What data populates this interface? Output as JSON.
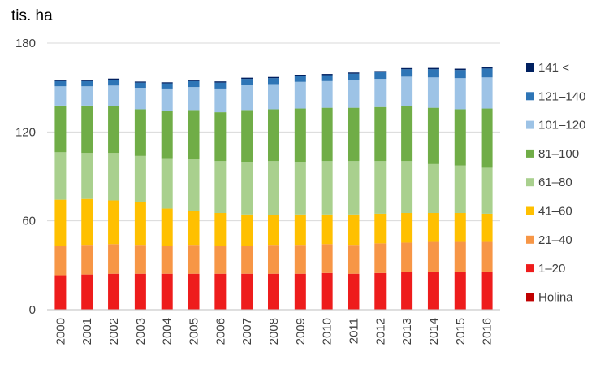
{
  "chart_data": {
    "type": "bar",
    "stacked": true,
    "unit_label": "tis. ha",
    "ylim": [
      0,
      180
    ],
    "yticks": [
      "0",
      "60",
      "120",
      "180"
    ],
    "grid": true,
    "legend_position": "right",
    "categories": [
      "2000",
      "2001",
      "2002",
      "2003",
      "2004",
      "2005",
      "2006",
      "2007",
      "2008",
      "2009",
      "2010",
      "2011",
      "2012",
      "2013",
      "2014",
      "2015",
      "2016"
    ],
    "series": [
      {
        "name": "Holina",
        "color": "#c00000",
        "values": [
          0.3,
          0.3,
          0.3,
          0.3,
          0.3,
          0.3,
          0.3,
          0.3,
          0.3,
          0.3,
          0.3,
          0.3,
          0.3,
          0.3,
          0.3,
          0.3,
          0.3
        ]
      },
      {
        "name": "1–20",
        "color": "#ee1c1c",
        "values": [
          23,
          23.5,
          24,
          24,
          24,
          24,
          24,
          24,
          24,
          24,
          24.5,
          24,
          24.5,
          25,
          25.5,
          25.5,
          25.5
        ]
      },
      {
        "name": "21–40",
        "color": "#f79646",
        "values": [
          20,
          20,
          20,
          19.5,
          19,
          19.5,
          19,
          19,
          19.5,
          19.5,
          19.5,
          19.5,
          20,
          20,
          20,
          20,
          20
        ]
      },
      {
        "name": "41–60",
        "color": "#ffc000",
        "values": [
          31,
          31,
          29.5,
          29,
          25,
          23,
          22,
          21,
          20,
          20.5,
          20,
          20.5,
          20,
          20,
          19.5,
          19.5,
          19
        ]
      },
      {
        "name": "61–80",
        "color": "#a9d08e",
        "values": [
          32,
          31,
          32,
          31,
          34,
          35,
          35,
          35.5,
          36.5,
          35.5,
          36,
          36,
          35.5,
          35,
          33,
          32,
          31
        ]
      },
      {
        "name": "81–100",
        "color": "#70ad47",
        "values": [
          31.5,
          32,
          31.5,
          31.5,
          32,
          33,
          33,
          35,
          35,
          36,
          36,
          36,
          36.5,
          37,
          38,
          38,
          40
        ]
      },
      {
        "name": "101–120",
        "color": "#9dc3e6",
        "values": [
          13,
          13,
          14,
          14.5,
          15,
          15.5,
          16,
          17,
          17,
          18,
          18,
          18.5,
          19,
          20,
          20.5,
          21,
          21
        ]
      },
      {
        "name": "121–140",
        "color": "#2e75b6",
        "values": [
          3.5,
          3.5,
          4,
          3.5,
          3.5,
          4,
          4,
          4,
          4,
          4,
          4,
          4.5,
          4.5,
          5,
          5.5,
          5.5,
          6
        ]
      },
      {
        "name": "141 <",
        "color": "#002060",
        "values": [
          0.5,
          0.5,
          0.7,
          0.7,
          0.7,
          0.7,
          0.8,
          0.8,
          0.8,
          0.8,
          0.8,
          0.8,
          0.8,
          0.8,
          0.9,
          0.9,
          1
        ]
      }
    ]
  }
}
